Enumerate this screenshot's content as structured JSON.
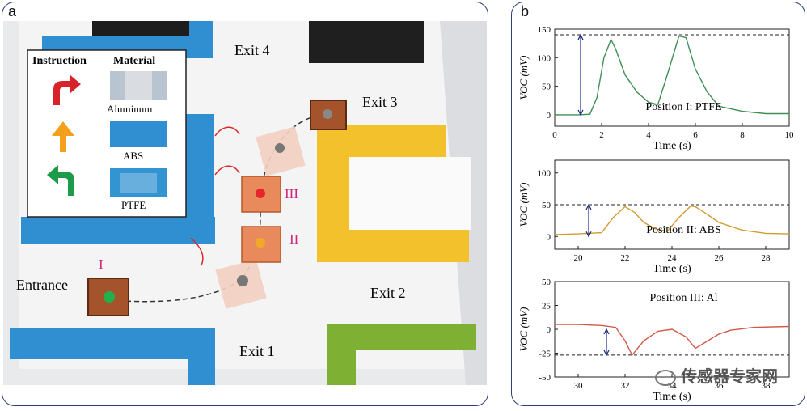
{
  "panel_a": {
    "label": "a",
    "exits": [
      "Exit 4",
      "Exit 3",
      "Exit 2",
      "Exit 1"
    ],
    "entrance": "Entrance",
    "positions": [
      "I",
      "II",
      "III"
    ],
    "legend": {
      "instruction_header": "Instruction",
      "material_header": "Material",
      "materials": [
        "Aluminum",
        "ABS",
        "PTFE"
      ]
    }
  },
  "panel_b": {
    "label": "b",
    "watermark": "传感器专家网",
    "chart_titles": [
      "Position I: PTFE",
      "Position II: ABS",
      "Position III: Al"
    ]
  },
  "chart_data": [
    {
      "type": "line",
      "title": "Position I: PTFE",
      "xlabel": "Time (s)",
      "ylabel": "VOC (mV)",
      "xlim": [
        0,
        10
      ],
      "ylim": [
        -20,
        150
      ],
      "xticks": [
        0,
        2,
        4,
        6,
        8,
        10
      ],
      "yticks": [
        0,
        50,
        100,
        150
      ],
      "reference_line": 140,
      "color": "#3e8f55",
      "x": [
        0,
        1.0,
        1.5,
        1.8,
        2.1,
        2.4,
        2.6,
        3.0,
        3.5,
        4.0,
        4.4,
        4.8,
        5.3,
        5.6,
        6.0,
        6.5,
        7.0,
        8.0,
        9.0,
        10
      ],
      "y": [
        0,
        0,
        1,
        30,
        100,
        132,
        115,
        70,
        40,
        22,
        18,
        70,
        138,
        135,
        80,
        40,
        15,
        6,
        2,
        2
      ]
    },
    {
      "type": "line",
      "title": "Position II: ABS",
      "xlabel": "Time (s)",
      "ylabel": "VOC (mV)",
      "xlim": [
        19,
        29
      ],
      "ylim": [
        -20,
        120
      ],
      "xticks": [
        20,
        22,
        24,
        26,
        28
      ],
      "yticks": [
        0,
        50,
        100
      ],
      "reference_line": 50,
      "color": "#d39a2e",
      "x": [
        19,
        20,
        21,
        21.5,
        22.0,
        22.4,
        22.8,
        23.3,
        23.8,
        24.3,
        24.8,
        25.0,
        25.5,
        26.0,
        27.0,
        28.0,
        29
      ],
      "y": [
        3,
        4,
        6,
        30,
        47,
        38,
        22,
        12,
        8,
        30,
        48,
        47,
        35,
        22,
        10,
        5,
        4
      ]
    },
    {
      "type": "line",
      "title": "Position III: Al",
      "xlabel": "Time (s)",
      "ylabel": "VOC (mV)",
      "xlim": [
        29,
        39
      ],
      "ylim": [
        -50,
        50
      ],
      "xticks": [
        30,
        32,
        34,
        36,
        38
      ],
      "yticks": [
        -50,
        -25,
        0,
        25,
        50
      ],
      "reference_line": -27,
      "color": "#cf5a4a",
      "x": [
        29,
        30,
        31.0,
        31.6,
        32.0,
        32.3,
        32.8,
        33.4,
        34.0,
        34.6,
        35.0,
        35.4,
        36.0,
        36.5,
        37.5,
        39
      ],
      "y": [
        5,
        5,
        4,
        2,
        -12,
        -27,
        -12,
        -2,
        0,
        -8,
        -20,
        -14,
        -5,
        -1,
        2,
        3
      ]
    }
  ]
}
